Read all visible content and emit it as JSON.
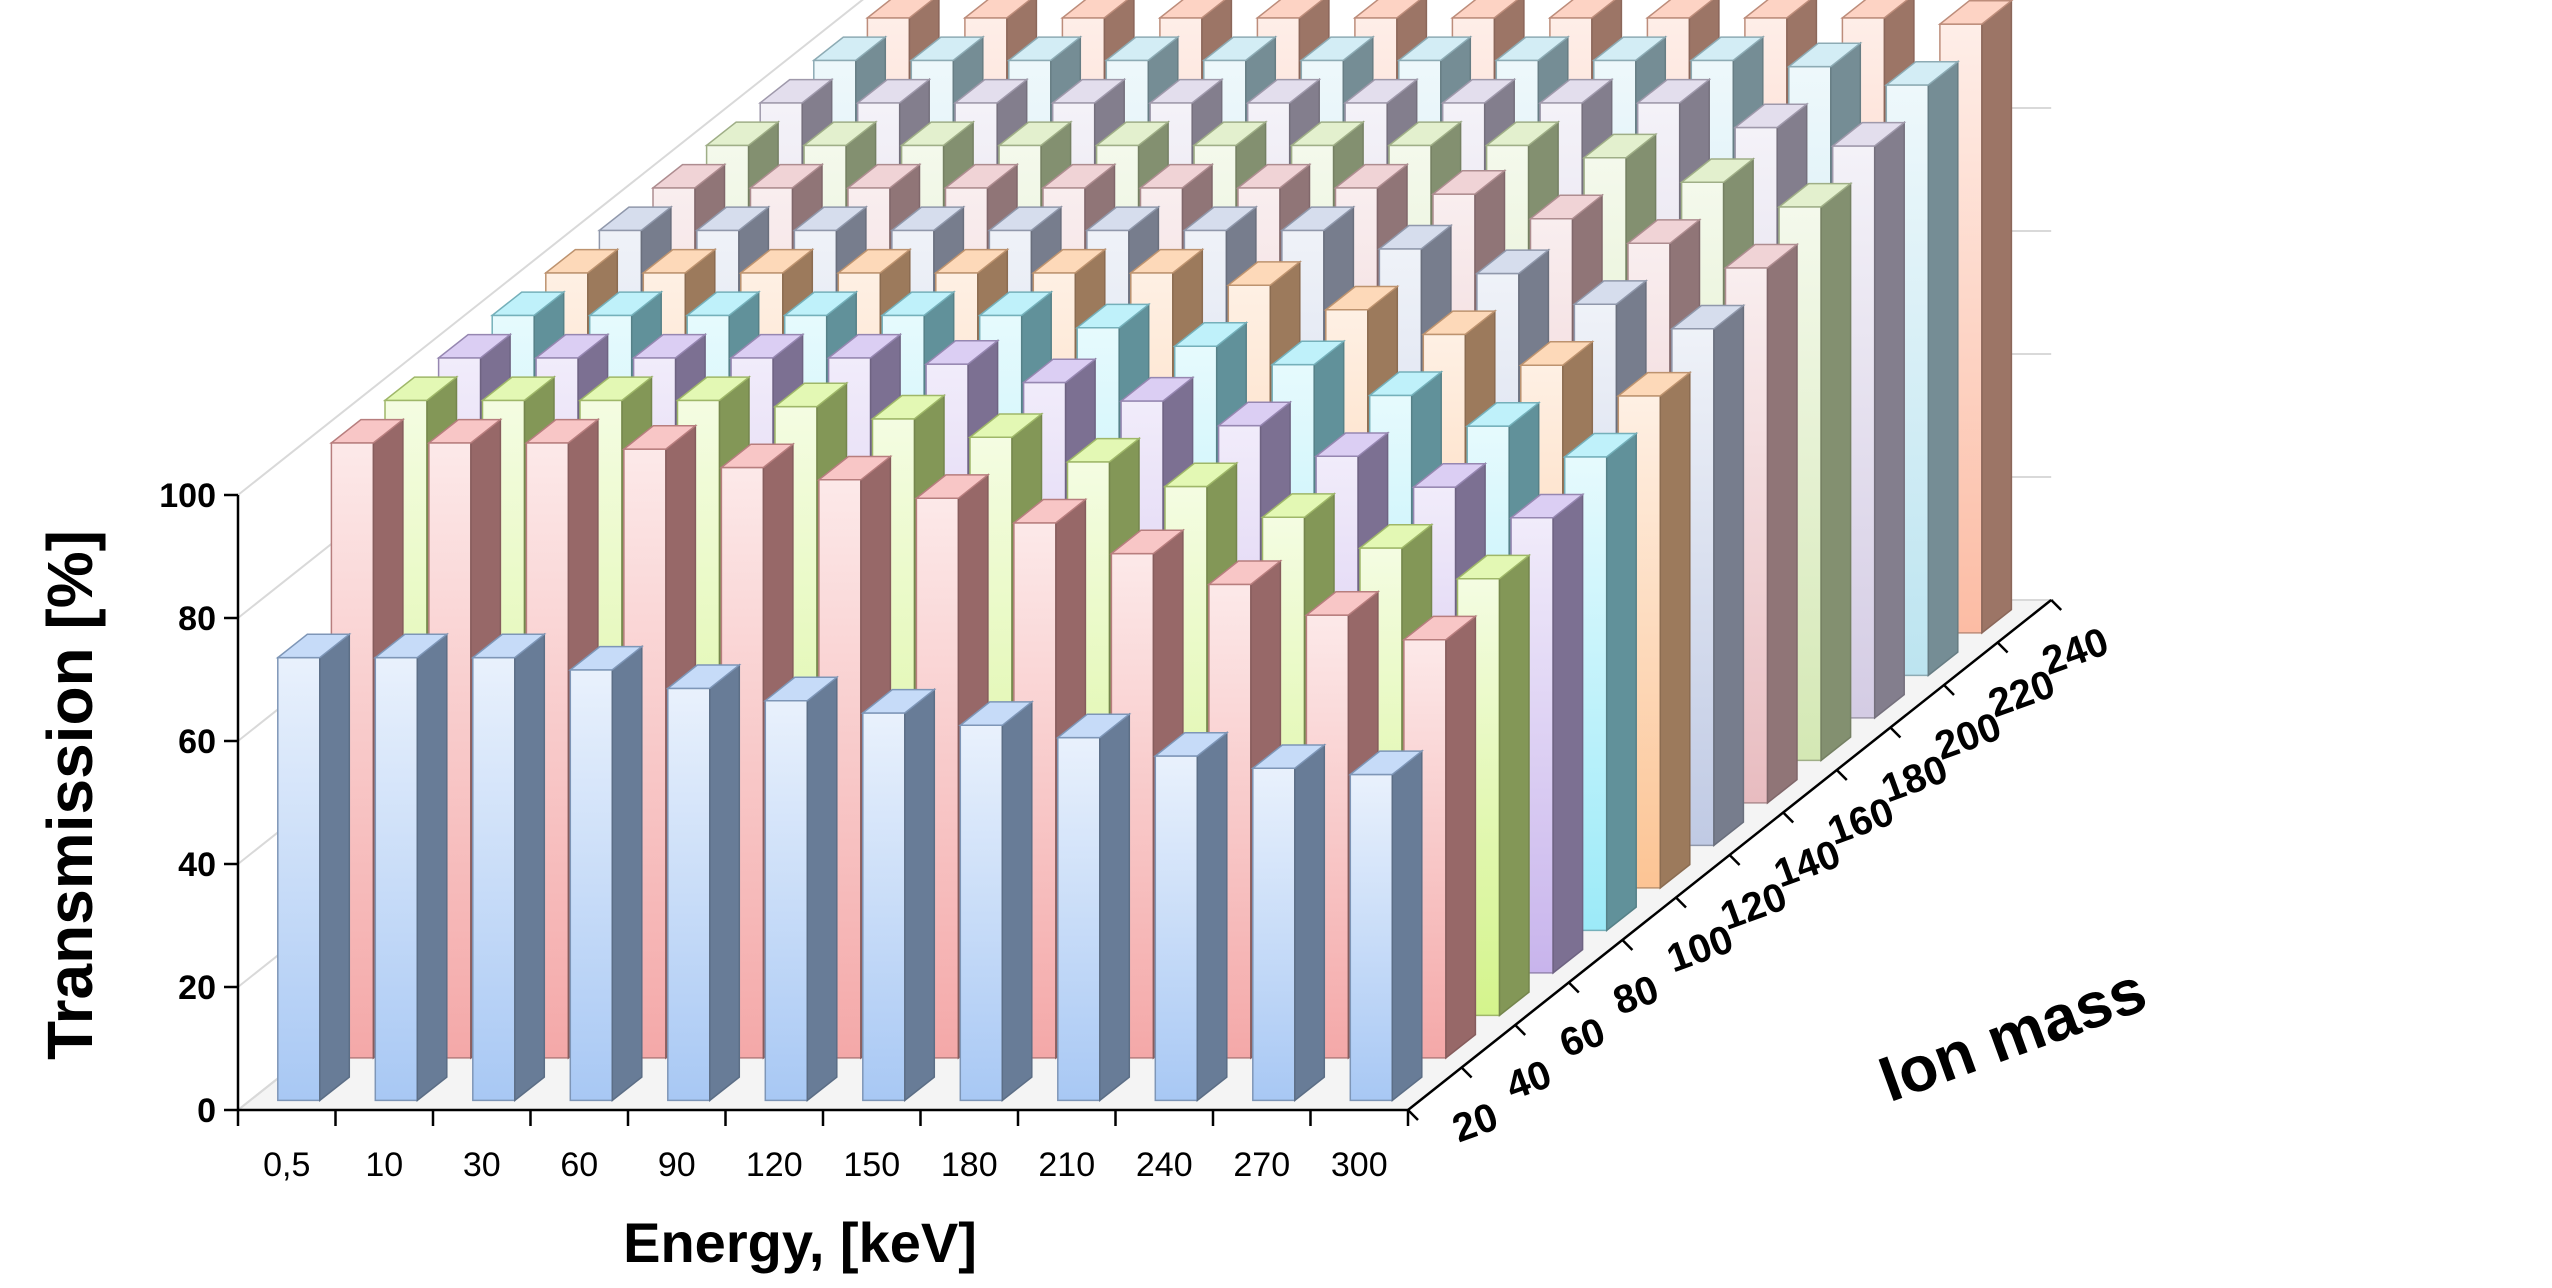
{
  "chart_data": {
    "type": "bar",
    "variant": "3d-column",
    "title": "",
    "xlabel": "Energy,  [keV]",
    "ylabel": "Transmission  [%]",
    "zlabel": "Ion mass",
    "ylim": [
      0,
      100
    ],
    "yticks": [
      "0",
      "20",
      "40",
      "60",
      "80",
      "100"
    ],
    "categories": [
      "0,5",
      "10",
      "30",
      "60",
      "90",
      "120",
      "150",
      "180",
      "210",
      "240",
      "270",
      "300"
    ],
    "depth_labels": [
      "20",
      "40",
      "60",
      "80",
      "100",
      "120",
      "140",
      "160",
      "180",
      "200",
      "220",
      "240"
    ],
    "gridlines": true,
    "series": [
      {
        "name": "20",
        "color": "#a8c8f4",
        "values": [
          72,
          72,
          72,
          70,
          67,
          65,
          63,
          61,
          59,
          56,
          54,
          53
        ]
      },
      {
        "name": "40",
        "color": "#f4a8a8",
        "values": [
          100,
          100,
          100,
          99,
          96,
          94,
          91,
          87,
          82,
          77,
          72,
          68
        ]
      },
      {
        "name": "60",
        "color": "#d4f48c",
        "values": [
          100,
          100,
          100,
          100,
          99,
          97,
          94,
          90,
          86,
          81,
          76,
          71
        ]
      },
      {
        "name": "80",
        "color": "#c8b4ec",
        "values": [
          100,
          100,
          100,
          100,
          100,
          99,
          96,
          93,
          89,
          84,
          79,
          74
        ]
      },
      {
        "name": "100",
        "color": "#9ceaf8",
        "values": [
          100,
          100,
          100,
          100,
          100,
          100,
          98,
          95,
          92,
          87,
          82,
          77
        ]
      },
      {
        "name": "120",
        "color": "#fcc494",
        "values": [
          100,
          100,
          100,
          100,
          100,
          100,
          100,
          98,
          94,
          90,
          85,
          80
        ]
      },
      {
        "name": "140",
        "color": "#c0cae4",
        "values": [
          100,
          100,
          100,
          100,
          100,
          100,
          100,
          100,
          97,
          93,
          88,
          84
        ]
      },
      {
        "name": "160",
        "color": "#e8bcc0",
        "values": [
          100,
          100,
          100,
          100,
          100,
          100,
          100,
          100,
          99,
          95,
          91,
          87
        ]
      },
      {
        "name": "180",
        "color": "#d4e8b4",
        "values": [
          100,
          100,
          100,
          100,
          100,
          100,
          100,
          100,
          100,
          98,
          94,
          90
        ]
      },
      {
        "name": "200",
        "color": "#d4cce4",
        "values": [
          100,
          100,
          100,
          100,
          100,
          100,
          100,
          100,
          100,
          100,
          96,
          93
        ]
      },
      {
        "name": "220",
        "color": "#bce4f0",
        "values": [
          100,
          100,
          100,
          100,
          100,
          100,
          100,
          100,
          100,
          100,
          99,
          96
        ]
      },
      {
        "name": "240",
        "color": "#fcbca4",
        "values": [
          100,
          100,
          100,
          100,
          100,
          100,
          100,
          100,
          100,
          100,
          100,
          99
        ]
      }
    ]
  }
}
